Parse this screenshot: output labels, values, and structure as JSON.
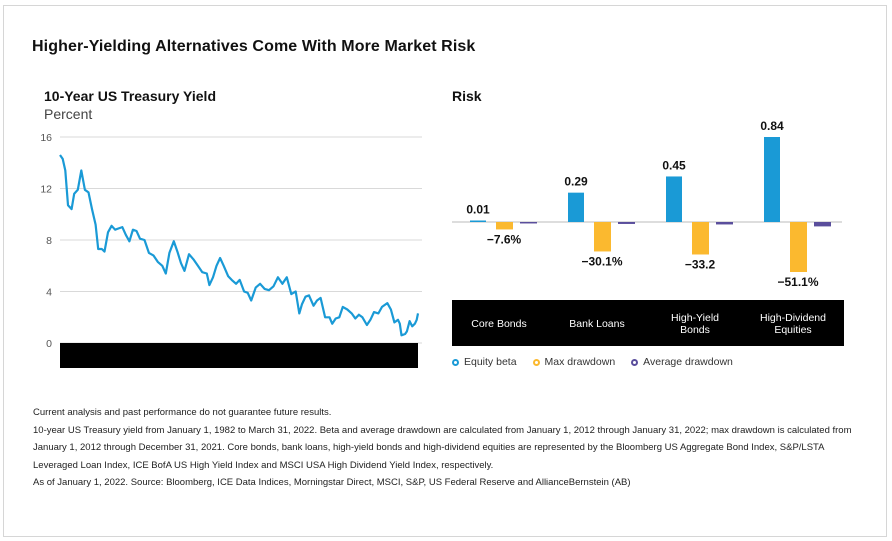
{
  "title": "Higher-Yielding Alternatives Come With More Market Risk",
  "left_chart": {
    "title": "10-Year US Treasury Yield",
    "subtitle": "Percent"
  },
  "right_chart": {
    "title": "Risk"
  },
  "legend": [
    {
      "label": "Equity beta",
      "color": "#1a9ad6"
    },
    {
      "label": "Max drawdown",
      "color": "#fbb92f"
    },
    {
      "label": "Average drawdown",
      "color": "#5a4e9c"
    }
  ],
  "notes": [
    "Current analysis and past performance do not guarantee future results.",
    "10-year US Treasury yield from January 1, 1982 to March 31, 2022. Beta and average drawdown are calculated from January 1, 2012 through January 31, 2022; max drawdown is calculated from",
    "January 1, 2012 through December 31, 2021. Core bonds, bank loans, high-yield bonds and high-dividend equities are represented by the Bloomberg US Aggregate Bond Index, S&P/LSTA",
    "Leveraged Loan Index, ICE BofA US High Yield Index and MSCI USA High Dividend Yield Index, respectively.",
    "As of January 1, 2022. Source: Bloomberg, ICE Data Indices, Morningstar Direct, MSCI, S&P, US Federal Reserve and AllianceBernstein (AB)"
  ],
  "chart_data": [
    {
      "type": "line",
      "title": "10-Year US Treasury Yield",
      "ylabel": "Percent",
      "ylim": [
        0,
        16
      ],
      "yticks": [
        0,
        4,
        8,
        12,
        16
      ],
      "grid": true,
      "line_color": "#1a9ad6",
      "series": [
        {
          "x": [
            1982.0,
            1982.3,
            1982.6,
            1982.9,
            1983.3,
            1983.6,
            1984.0,
            1984.4,
            1984.8,
            1985.2,
            1985.6,
            1986.0,
            1986.3,
            1986.7,
            1987.0,
            1987.4,
            1987.8,
            1988.2,
            1988.6,
            1989.0,
            1989.4,
            1989.8,
            1990.2,
            1990.6,
            1991.0,
            1991.5,
            1992.0,
            1992.5,
            1993.0,
            1993.5,
            1993.9,
            1994.3,
            1994.8,
            1995.2,
            1995.6,
            1996.0,
            1996.5,
            1997.0,
            1997.5,
            1998.0,
            1998.5,
            1998.8,
            1999.2,
            1999.6,
            2000.0,
            2000.4,
            2000.9,
            2001.3,
            2001.8,
            2002.2,
            2002.7,
            2003.1,
            2003.5,
            2004.0,
            2004.5,
            2005.0,
            2005.5,
            2006.0,
            2006.5,
            2007.0,
            2007.5,
            2008.0,
            2008.5,
            2008.9,
            2009.2,
            2009.6,
            2010.0,
            2010.5,
            2010.9,
            2011.3,
            2011.8,
            2012.3,
            2012.6,
            2013.0,
            2013.4,
            2013.8,
            2014.3,
            2014.8,
            2015.2,
            2015.6,
            2016.0,
            2016.5,
            2016.9,
            2017.3,
            2017.8,
            2018.2,
            2018.8,
            2019.2,
            2019.6,
            2020.0,
            2020.2,
            2020.4,
            2020.8,
            2021.0,
            2021.3,
            2021.6,
            2021.9,
            2022.1,
            2022.25
          ],
          "y": [
            14.6,
            14.3,
            13.4,
            10.7,
            10.4,
            11.6,
            11.9,
            13.4,
            11.9,
            11.7,
            10.4,
            9.2,
            7.3,
            7.3,
            7.1,
            8.6,
            9.1,
            8.8,
            8.9,
            9.0,
            8.4,
            7.9,
            8.8,
            8.7,
            8.1,
            8.0,
            7.0,
            6.8,
            6.3,
            6.0,
            5.4,
            7.0,
            7.9,
            7.1,
            6.2,
            5.6,
            6.9,
            6.5,
            6.0,
            5.5,
            5.4,
            4.5,
            5.1,
            6.0,
            6.6,
            6.0,
            5.2,
            4.9,
            4.6,
            4.9,
            4.0,
            3.9,
            3.3,
            4.3,
            4.6,
            4.2,
            4.1,
            4.4,
            5.1,
            4.6,
            5.1,
            3.8,
            4.0,
            2.3,
            3.0,
            3.6,
            3.7,
            2.9,
            3.3,
            3.5,
            2.0,
            2.0,
            1.5,
            1.9,
            2.0,
            2.8,
            2.6,
            2.3,
            1.9,
            2.2,
            2.0,
            1.4,
            1.8,
            2.4,
            2.3,
            2.8,
            3.1,
            2.6,
            1.6,
            1.8,
            1.5,
            0.6,
            0.7,
            0.9,
            1.7,
            1.3,
            1.5,
            1.8,
            2.3
          ]
        }
      ]
    },
    {
      "type": "bar",
      "title": "Risk",
      "categories": [
        "Core Bonds",
        "Bank Loans",
        "High-Yield Bonds",
        "High-Dividend Equities"
      ],
      "series": [
        {
          "name": "Equity beta",
          "color": "#1a9ad6",
          "values": [
            0.01,
            0.29,
            0.45,
            0.84
          ],
          "labels": [
            "0.01",
            "0.29",
            "0.45",
            "0.84"
          ]
        },
        {
          "name": "Max drawdown",
          "color": "#fbb92f",
          "values": [
            -7.6,
            -30.1,
            -33.2,
            -51.1
          ],
          "labels": [
            "−7.6%",
            "−30.1%",
            "−33.2",
            "−51.1%"
          ]
        },
        {
          "name": "Average drawdown",
          "color": "#5a4e9c",
          "values": [
            -1.5,
            -2.0,
            -2.5,
            -4.5
          ],
          "labels": []
        }
      ],
      "legend": "bottom"
    }
  ]
}
